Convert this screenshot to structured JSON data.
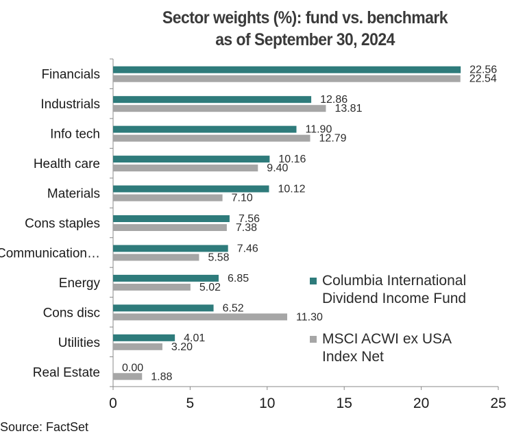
{
  "chart_data": {
    "type": "bar",
    "orientation": "horizontal",
    "title": "Sector weights (%): fund vs. benchmark",
    "subtitle": "as of  September 30, 2024",
    "categories": [
      "Financials",
      "Industrials",
      "Info tech",
      "Health care",
      "Materials",
      "Cons staples",
      "Communication…",
      "Energy",
      "Cons disc",
      "Utilities",
      "Real Estate"
    ],
    "series": [
      {
        "name": "Columbia International Dividend Income Fund",
        "legend_lines": [
          "Columbia International",
          "Dividend Income Fund"
        ],
        "color": "#2e7b7b",
        "values": [
          22.56,
          12.86,
          11.9,
          10.16,
          10.12,
          7.56,
          7.46,
          6.85,
          6.52,
          4.01,
          0.0
        ],
        "labels": [
          "22.56",
          "12.86",
          "11.90",
          "10.16",
          "10.12",
          "7.56",
          "7.46",
          "6.85",
          "6.52",
          "4.01",
          "0.00"
        ]
      },
      {
        "name": "MSCI ACWI ex USA Index Net",
        "legend_lines": [
          "MSCI ACWI ex USA",
          "Index Net"
        ],
        "color": "#a6a6a6",
        "values": [
          22.54,
          13.81,
          12.79,
          9.4,
          7.1,
          7.38,
          5.58,
          5.02,
          11.3,
          3.2,
          1.88
        ],
        "labels": [
          "22.54",
          "13.81",
          "12.79",
          "9.40",
          "7.10",
          "7.38",
          "5.58",
          "5.02",
          "11.30",
          "3.20",
          "1.88"
        ]
      }
    ],
    "xlim": [
      0,
      25
    ],
    "xticks": [
      "0",
      "5",
      "10",
      "15",
      "20",
      "25"
    ],
    "xlabel": "",
    "ylabel": "",
    "grid": false,
    "legend_position": "right"
  },
  "source": "Source: FactSet"
}
